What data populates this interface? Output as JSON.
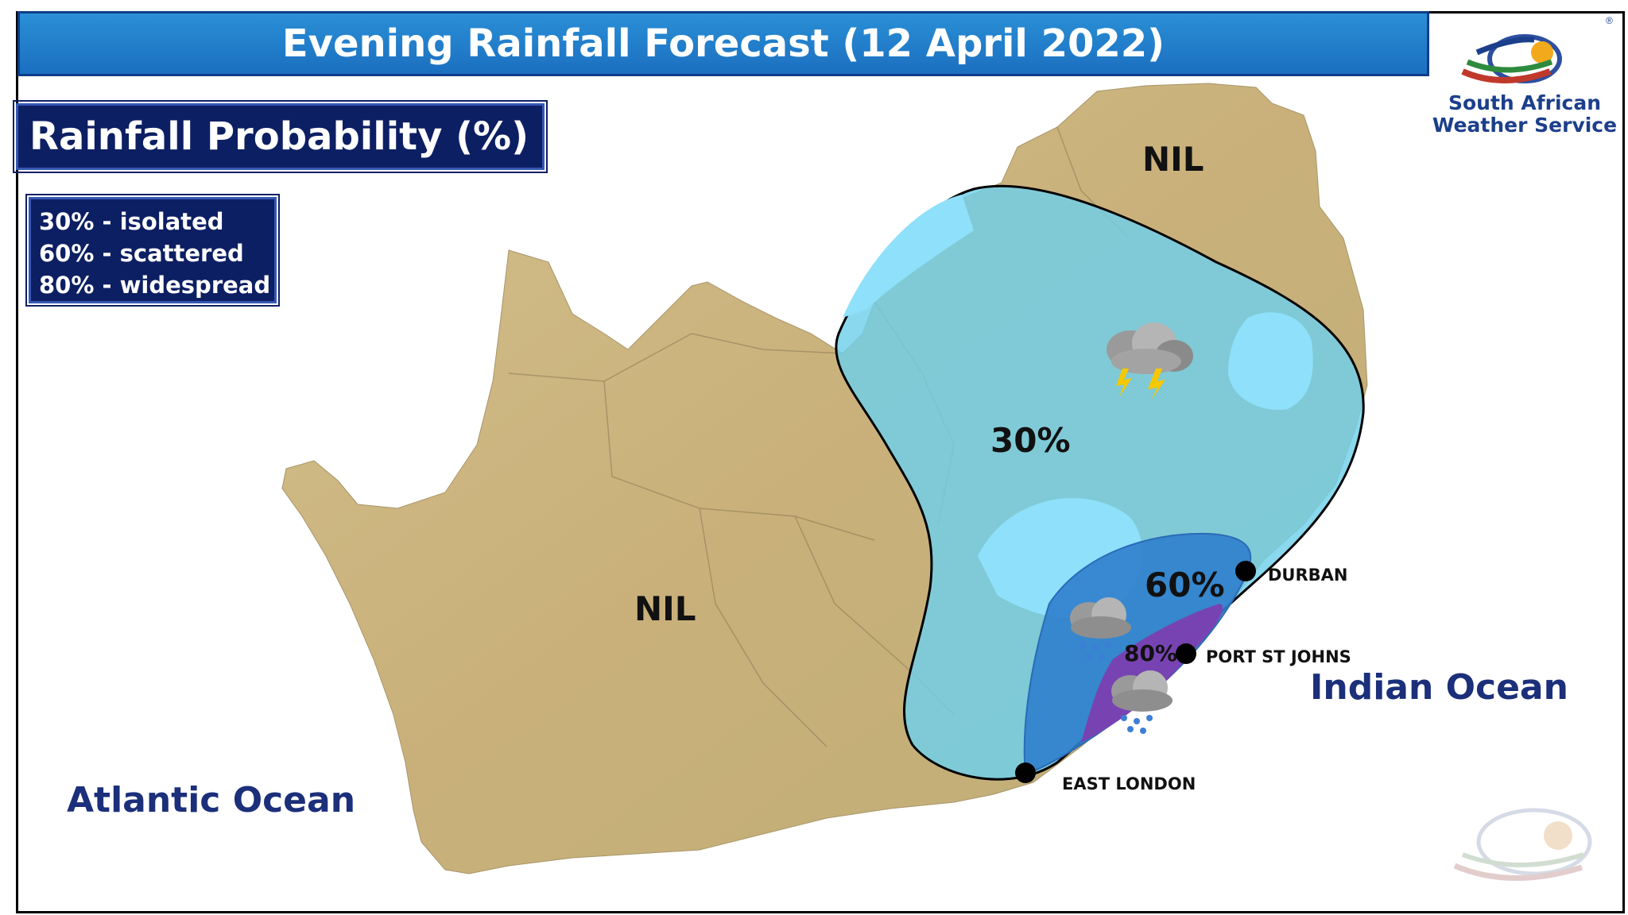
{
  "header": {
    "title": "Evening Rainfall Forecast (12 April 2022)"
  },
  "probability_panel": {
    "title": "Rainfall Probability (%)"
  },
  "legend": {
    "items": [
      "30% - isolated",
      "60% - scattered",
      "80% - widespread"
    ]
  },
  "logo": {
    "line1": "South African",
    "line2": "Weather Service",
    "trademark": "®"
  },
  "map": {
    "zones": {
      "nil_west": "NIL",
      "nil_north": "NIL",
      "p30": "30%",
      "p60": "60%",
      "p80": "80%"
    },
    "cities": {
      "durban": "DURBAN",
      "port_st_johns": "PORT ST JOHNS",
      "east_london": "EAST LONDON"
    },
    "oceans": {
      "indian": "Indian Ocean",
      "atlantic": "Atlantic Ocean"
    },
    "colors": {
      "land": "#cbb883",
      "p30": "#6fd0ea",
      "p60": "#2f7fcc",
      "p80": "#7b3fb0",
      "lesotho_swazi": "#8fe0fa"
    },
    "icons": [
      "thunderstorm-icon",
      "rain-cloud-icon",
      "rain-cloud-icon"
    ]
  }
}
